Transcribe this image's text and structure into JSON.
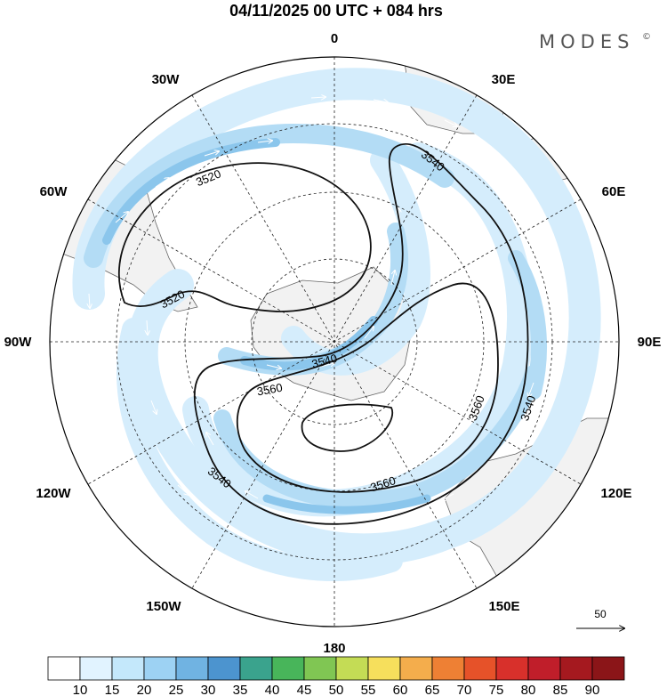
{
  "header": {
    "title": "04/11/2025  00 UTC  + 084 hrs",
    "brand": "MODES",
    "brand_mark": "©"
  },
  "map": {
    "projection": "south-polar-stereographic",
    "longitude_labels": [
      "0",
      "30E",
      "60E",
      "90E",
      "120E",
      "150E",
      "180",
      "150W",
      "120W",
      "90W",
      "60W",
      "30W"
    ],
    "contour_labels": [
      "3520",
      "3520",
      "3540",
      "3540",
      "3540",
      "3540",
      "3560",
      "3560",
      "3560"
    ],
    "colors": {
      "land": "#f2f2f2",
      "coast": "#666666",
      "contour": "#111111",
      "vector": "#ffffff",
      "grid": "#222222"
    }
  },
  "vector_reference": {
    "label": "50"
  },
  "colorbar": {
    "labels": [
      "10",
      "15",
      "20",
      "25",
      "30",
      "35",
      "40",
      "45",
      "50",
      "55",
      "60",
      "65",
      "70",
      "75",
      "80",
      "85",
      "90"
    ],
    "colors": [
      "#ffffff",
      "#e1f3ff",
      "#c4e8fb",
      "#9dd2f3",
      "#70b3e2",
      "#4c94cf",
      "#3aa38d",
      "#48b55a",
      "#80c653",
      "#c4dc55",
      "#f6df5c",
      "#f4ad4c",
      "#ee8034",
      "#e65229",
      "#d8302b",
      "#c01e2a",
      "#a5191f",
      "#8b1518"
    ]
  }
}
